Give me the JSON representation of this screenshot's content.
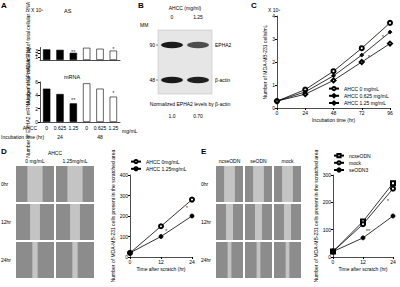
{
  "chart_data": [
    {
      "label": "A",
      "type": "bar",
      "subtitle": "AS",
      "y_scale_label": "X 10⁵",
      "y_label": "Number of EPHA2-AS/ µg of total cellular RNA",
      "categories": [
        null,
        null,
        null,
        null,
        null,
        null
      ],
      "series": [
        {
          "name": "24",
          "color": "#000000",
          "values": [
            3.4,
            3.25,
            2.3,
            null,
            null,
            null
          ]
        },
        {
          "name": "48",
          "color": "#ffffff",
          "values": [
            null,
            null,
            null,
            3.9,
            3.6,
            3.0
          ]
        }
      ],
      "ylim": [
        0,
        4
      ],
      "yticks": [
        0,
        1,
        2,
        3,
        4
      ],
      "grid": false,
      "tick_labels": "y",
      "annotations": [
        {
          "text": "**",
          "x": 2,
          "y": 2.65
        },
        {
          "text": "*",
          "x": 5,
          "y": 3.4
        }
      ]
    },
    {
      "type": "bar",
      "subtitle": "mRNA",
      "y_label": "Number of EPHA2 mRNA/ µg of total cellular RNA",
      "x_label": "Incubation time (hr)",
      "x_group_label": "AHCC",
      "x_unit_label": "mg/mL",
      "categories": [
        "0",
        "0.625",
        "1.25",
        "0",
        "0.625",
        "1.25"
      ],
      "series": [
        {
          "name": "24",
          "color": "#000000",
          "values": [
            5.0,
            4.2,
            2.8,
            null,
            null,
            null
          ]
        },
        {
          "name": "48",
          "color": "#ffffff",
          "values": [
            null,
            null,
            null,
            5.8,
            5.0,
            3.8
          ]
        }
      ],
      "ylim": [
        0,
        6
      ],
      "yticks": [
        0,
        2,
        4,
        6
      ],
      "grid": false,
      "annotations": [
        {
          "text": "**",
          "x": 2,
          "y": 3.3
        },
        {
          "text": "*",
          "x": 5,
          "y": 4.3
        }
      ]
    },
    {
      "label": "C",
      "type": "line",
      "y_scale_label": "X 10⁵",
      "y_label": "Number of MDA-MB-231 cells/mL",
      "x_label": "Incubation time (hr)",
      "x": [
        0,
        24,
        48,
        72,
        96
      ],
      "series": [
        {
          "name": "AHCC 0 mg/mL",
          "color": "#000000",
          "marker": "open_circle",
          "values": [
            0.3,
            0.8,
            1.6,
            2.6,
            3.7
          ]
        },
        {
          "name": "AHCC 0.625 mg/mL",
          "color": "#000000",
          "marker": "filled_diamond",
          "values": [
            0.3,
            0.7,
            1.4,
            2.3,
            3.3
          ]
        },
        {
          "name": "AHCC 1.25 mg/mL",
          "color": "#000000",
          "marker": "open_diamond",
          "values": [
            0.3,
            0.6,
            1.2,
            2.0,
            2.8
          ]
        }
      ],
      "xlim": [
        0,
        96
      ],
      "xticks": [
        0,
        24,
        48,
        72,
        96
      ],
      "ylim": [
        0,
        4
      ],
      "yticks": [
        0,
        1,
        2,
        3,
        4
      ],
      "grid": false,
      "legend": "lower right",
      "annotations": [
        {
          "text": "*",
          "x": 78,
          "y": 2.2
        },
        {
          "text": "*",
          "x": 90,
          "y": 3.1
        }
      ]
    },
    {
      "type": "line",
      "y_label": "Number of MDA-MB-231 cells present in the scratched area",
      "x_label": "Time after scratch (hr)",
      "x": [
        0,
        12,
        24
      ],
      "series": [
        {
          "name": "AHCC 0mg/mL",
          "color": "#000000",
          "marker": "open_circle",
          "values": [
            20,
            150,
            280
          ]
        },
        {
          "name": "AHCC 1.25mg/mL",
          "color": "#000000",
          "marker": "filled_circle",
          "values": [
            20,
            100,
            200
          ]
        }
      ],
      "xlim": [
        0,
        24
      ],
      "xticks": [
        0,
        12,
        24
      ],
      "ylim": [
        0,
        400
      ],
      "yticks": [
        0,
        100,
        200,
        300,
        400
      ],
      "grid": false,
      "legend": "top",
      "annotations": [
        {
          "text": "*",
          "x": 14,
          "y": 125
        },
        {
          "text": "*",
          "x": 22,
          "y": 240
        }
      ]
    },
    {
      "type": "line",
      "y_label": "Number of MDA-MB-231 cells present in the scratched area",
      "x_label": "Time after scratch (hr)",
      "x": [
        0,
        12,
        24
      ],
      "series": [
        {
          "name": "ncseODN",
          "color": "#000000",
          "marker": "open_square",
          "values": [
            20,
            130,
            270
          ]
        },
        {
          "name": "mock",
          "color": "#000000",
          "marker": "open_circle",
          "values": [
            20,
            120,
            250
          ]
        },
        {
          "name": "seODN3",
          "color": "#000000",
          "marker": "filled_circle",
          "values": [
            20,
            70,
            150
          ]
        }
      ],
      "xlim": [
        0,
        24
      ],
      "xticks": [
        0,
        12,
        24
      ],
      "ylim": [
        0,
        300
      ],
      "yticks": [
        0,
        100,
        200,
        300
      ],
      "grid": false,
      "legend": "top",
      "annotations": [
        {
          "text": "**",
          "x": 14,
          "y": 95
        },
        {
          "text": "*",
          "x": 22,
          "y": 205
        }
      ]
    }
  ],
  "blot": {
    "label": "B",
    "treatment": "AHCC (mg/ml)",
    "lanes": [
      "0",
      "1.25"
    ],
    "marker_header": "MM",
    "markers": [
      90,
      48
    ],
    "bands": [
      "EPHA2",
      "β-actin"
    ],
    "quantification": {
      "label": "Normalized EPHA2 levels by β-actin",
      "values": [
        "1.0",
        "0.70"
      ]
    }
  },
  "photos": [
    {
      "label": "D",
      "header": "AHCC",
      "columns": [
        "0 mg/mL",
        "1.25mg/mL"
      ],
      "rows": [
        "0hr",
        "12hr",
        "24hr"
      ]
    },
    {
      "label": "E",
      "columns": [
        "ncseODN",
        "seODN",
        "mock"
      ],
      "rows": [
        "0hr",
        "12hr",
        "24hr"
      ]
    }
  ]
}
